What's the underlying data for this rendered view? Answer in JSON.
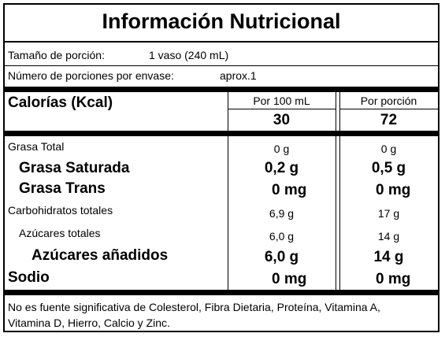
{
  "title": "Información Nutricional",
  "serving": {
    "size_label": "Tamaño de porción:",
    "size_value": "1 vaso (240 mL)",
    "count_label": "Número de porciones por envase:",
    "count_value": "aprox.1"
  },
  "calories": {
    "label": "Calorías (Kcal)",
    "col1_header": "Por 100 mL",
    "col2_header": "Por porción",
    "col1_value": "30",
    "col2_value": "72"
  },
  "nutrients": [
    {
      "label": "Grasa Total",
      "per100": "0 g",
      "perServing": "0 g"
    },
    {
      "label": "Grasa Saturada",
      "per100": "0,2 g",
      "perServing": "0,5 g"
    },
    {
      "label": "Grasa Trans",
      "per100": "0 mg",
      "perServing": "0 mg"
    },
    {
      "label": "Carbohidratos totales",
      "per100": "6,9 g",
      "perServing": "17 g"
    },
    {
      "label": "Azúcares totales",
      "per100": "6,0 g",
      "perServing": "14 g"
    },
    {
      "label": "Azúcares añadidos",
      "per100": "6,0 g",
      "perServing": "14 g"
    },
    {
      "label": "Sodio",
      "per100": "0 mg",
      "perServing": "0 mg"
    }
  ],
  "footnote_line1": "No es fuente significativa de Colesterol, Fibra Dietaria, Proteína, Vitamina A,",
  "footnote_line2": "Vitamina D, Hierro, Calcio y Zinc."
}
